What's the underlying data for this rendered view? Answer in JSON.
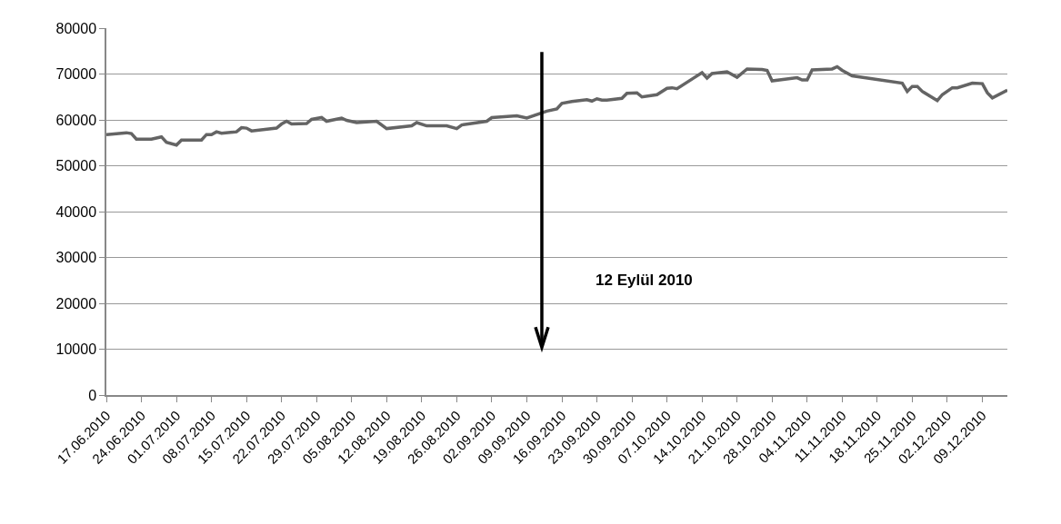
{
  "chart_data": {
    "type": "line",
    "x": [
      "2010-06-17",
      "2010-06-21",
      "2010-06-22",
      "2010-06-23",
      "2010-06-26",
      "2010-06-28",
      "2010-06-29",
      "2010-07-01",
      "2010-07-02",
      "2010-07-06",
      "2010-07-07",
      "2010-07-08",
      "2010-07-09",
      "2010-07-10",
      "2010-07-13",
      "2010-07-14",
      "2010-07-15",
      "2010-07-16",
      "2010-07-21",
      "2010-07-22",
      "2010-07-23",
      "2010-07-24",
      "2010-07-27",
      "2010-07-28",
      "2010-07-30",
      "2010-07-31",
      "2010-08-03",
      "2010-08-04",
      "2010-08-06",
      "2010-08-10",
      "2010-08-12",
      "2010-08-17",
      "2010-08-18",
      "2010-08-20",
      "2010-08-24",
      "2010-08-26",
      "2010-08-27",
      "2010-09-01",
      "2010-09-02",
      "2010-09-07",
      "2010-09-09",
      "2010-09-13",
      "2010-09-15",
      "2010-09-16",
      "2010-09-18",
      "2010-09-21",
      "2010-09-22",
      "2010-09-23",
      "2010-09-24",
      "2010-09-25",
      "2010-09-28",
      "2010-09-29",
      "2010-10-01",
      "2010-10-02",
      "2010-10-05",
      "2010-10-07",
      "2010-10-08",
      "2010-10-09",
      "2010-10-14",
      "2010-10-15",
      "2010-10-16",
      "2010-10-19",
      "2010-10-21",
      "2010-10-23",
      "2010-10-26",
      "2010-10-27",
      "2010-10-28",
      "2010-11-02",
      "2010-11-03",
      "2010-11-04",
      "2010-11-05",
      "2010-11-09",
      "2010-11-10",
      "2010-11-11",
      "2010-11-13",
      "2010-11-23",
      "2010-11-24",
      "2010-11-25",
      "2010-11-26",
      "2010-11-27",
      "2010-11-30",
      "2010-12-01",
      "2010-12-03",
      "2010-12-04",
      "2010-12-07",
      "2010-12-09",
      "2010-12-10",
      "2010-12-11",
      "2010-12-14"
    ],
    "series": [
      {
        "color": "#646464",
        "values": [
          56800,
          57200,
          57000,
          55800,
          55800,
          56300,
          55100,
          54500,
          55600,
          55600,
          56800,
          56800,
          57400,
          57100,
          57400,
          58300,
          58200,
          57600,
          58200,
          59100,
          59700,
          59100,
          59200,
          60100,
          60500,
          59700,
          60400,
          59900,
          59400,
          59700,
          58100,
          58700,
          59400,
          58700,
          58700,
          58100,
          58900,
          59700,
          60500,
          60900,
          60400,
          61900,
          62400,
          63600,
          64000,
          64400,
          64100,
          64600,
          64300,
          64300,
          64700,
          65800,
          65900,
          65000,
          65500,
          66900,
          67000,
          66800,
          70300,
          69100,
          70100,
          70500,
          69300,
          71100,
          71000,
          70800,
          68500,
          69200,
          68700,
          68700,
          70900,
          71100,
          71600,
          70800,
          69600,
          68000,
          66200,
          67300,
          67300,
          66200,
          64200,
          65500,
          67000,
          67000,
          68000,
          67900,
          65900,
          64800,
          66500
        ]
      }
    ],
    "xlim": [
      "2010-06-17",
      "2010-12-14"
    ],
    "xticks": [
      {
        "value": "2010-06-17",
        "label": "17.06.2010"
      },
      {
        "value": "2010-06-24",
        "label": "24.06.2010"
      },
      {
        "value": "2010-07-01",
        "label": "01.07.2010"
      },
      {
        "value": "2010-07-08",
        "label": "08.07.2010"
      },
      {
        "value": "2010-07-15",
        "label": "15.07.2010"
      },
      {
        "value": "2010-07-22",
        "label": "22.07.2010"
      },
      {
        "value": "2010-07-29",
        "label": "29.07.2010"
      },
      {
        "value": "2010-08-05",
        "label": "05.08.2010"
      },
      {
        "value": "2010-08-12",
        "label": "12.08.2010"
      },
      {
        "value": "2010-08-19",
        "label": "19.08.2010"
      },
      {
        "value": "2010-08-26",
        "label": "26.08.2010"
      },
      {
        "value": "2010-09-02",
        "label": "02.09.2010"
      },
      {
        "value": "2010-09-09",
        "label": "09.09.2010"
      },
      {
        "value": "2010-09-16",
        "label": "16.09.2010"
      },
      {
        "value": "2010-09-23",
        "label": "23.09.2010"
      },
      {
        "value": "2010-09-30",
        "label": "30.09.2010"
      },
      {
        "value": "2010-10-07",
        "label": "07.10.2010"
      },
      {
        "value": "2010-10-14",
        "label": "14.10.2010"
      },
      {
        "value": "2010-10-21",
        "label": "21.10.2010"
      },
      {
        "value": "2010-10-28",
        "label": "28.10.2010"
      },
      {
        "value": "2010-11-04",
        "label": "04.11.2010"
      },
      {
        "value": "2010-11-11",
        "label": "11.11.2010"
      },
      {
        "value": "2010-11-18",
        "label": "18.11.2010"
      },
      {
        "value": "2010-11-25",
        "label": "25.11.2010"
      },
      {
        "value": "2010-12-02",
        "label": "02.12.2010"
      },
      {
        "value": "2010-12-09",
        "label": "09.12.2010"
      }
    ],
    "ylim": [
      0,
      80000
    ],
    "yticks": [
      0,
      10000,
      20000,
      30000,
      40000,
      50000,
      60000,
      70000,
      80000
    ],
    "grid": "y",
    "marker": "none",
    "line_style": "solid",
    "ref_lines": [
      {
        "axis": "x",
        "value": "2010-09-12",
        "label": "12 Eylül 2010",
        "color": "#000000"
      }
    ]
  }
}
